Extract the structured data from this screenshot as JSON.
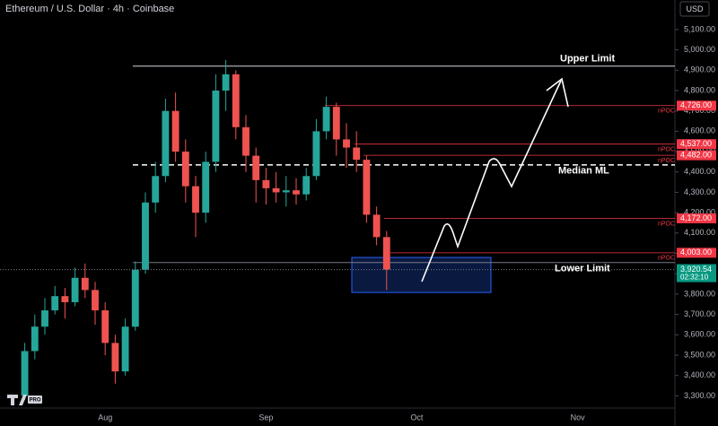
{
  "chart_data": {
    "type": "candlestick",
    "title": "Ethereum / U.S. Dollar · 4h · Coinbase",
    "currency": "USD",
    "categories": [
      null,
      null,
      null,
      null,
      null,
      null,
      null,
      null,
      "Aug",
      null,
      null,
      null,
      null,
      null,
      null,
      null,
      null,
      null,
      null,
      null,
      null,
      null,
      null,
      null,
      "Sep",
      null,
      null,
      null,
      null,
      null,
      null,
      null,
      null,
      null,
      null,
      null,
      null,
      null,
      null,
      "Oct",
      null,
      null,
      null,
      null,
      null,
      null,
      null,
      null,
      null,
      null,
      null,
      null,
      null,
      null,
      null,
      "Nov",
      null,
      null,
      null,
      null,
      null,
      null,
      null,
      null,
      null
    ],
    "open": [
      3300,
      3520,
      3640,
      3720,
      3790,
      3760,
      3880,
      3820,
      3720,
      3560,
      3420,
      3640,
      3920,
      4250,
      4380,
      4700,
      4500,
      4330,
      4200,
      4450,
      4800,
      4880,
      4620,
      4480,
      4360,
      4320,
      4300,
      4310,
      4290,
      4380,
      4600,
      4720,
      4560,
      4520,
      4460,
      4190,
      4080,
      null,
      null,
      null,
      null,
      null,
      null,
      null,
      null,
      null,
      null,
      null,
      null,
      null,
      null,
      null,
      null,
      null,
      null,
      null,
      null,
      null,
      null,
      null,
      null,
      null,
      null,
      null,
      null
    ],
    "high": [
      3560,
      3700,
      3780,
      3840,
      3830,
      3930,
      3950,
      3860,
      3760,
      3600,
      3680,
      3960,
      4300,
      4450,
      4760,
      4790,
      4560,
      4380,
      4500,
      4880,
      4950,
      4900,
      4680,
      4520,
      4420,
      4400,
      4380,
      4370,
      4420,
      4660,
      4770,
      4740,
      4640,
      4600,
      4480,
      4230,
      4110,
      null,
      null,
      null,
      null,
      null,
      null,
      null,
      null,
      null,
      null,
      null,
      null,
      null,
      null,
      null,
      null,
      null,
      null,
      null,
      null,
      null,
      null,
      null,
      null,
      null,
      null,
      null,
      null
    ],
    "low": [
      3280,
      3480,
      3600,
      3700,
      3680,
      3740,
      3780,
      3650,
      3500,
      3360,
      3400,
      3620,
      3900,
      4200,
      4350,
      4450,
      4250,
      4080,
      4150,
      4400,
      4700,
      4560,
      4400,
      4250,
      4240,
      4250,
      4230,
      4240,
      4260,
      4360,
      4560,
      4480,
      4420,
      4400,
      4150,
      4040,
      3820,
      null,
      null,
      null,
      null,
      null,
      null,
      null,
      null,
      null,
      null,
      null,
      null,
      null,
      null,
      null,
      null,
      null,
      null,
      null,
      null,
      null,
      null,
      null,
      null,
      null,
      null,
      null,
      null
    ],
    "close": [
      3520,
      3640,
      3720,
      3790,
      3760,
      3880,
      3820,
      3720,
      3560,
      3420,
      3640,
      3920,
      4250,
      4380,
      4700,
      4500,
      4330,
      4200,
      4450,
      4800,
      4880,
      4620,
      4480,
      4360,
      4320,
      4300,
      4310,
      4290,
      4380,
      4600,
      4720,
      4560,
      4520,
      4460,
      4190,
      4080,
      3920.54,
      null,
      null,
      null,
      null,
      null,
      null,
      null,
      null,
      null,
      null,
      null,
      null,
      null,
      null,
      null,
      null,
      null,
      null,
      null,
      null,
      null,
      null,
      null,
      null,
      null,
      null,
      null,
      null
    ],
    "up_color": "#26a69a",
    "down_color": "#ef5350",
    "ylim": [
      3240,
      5245
    ],
    "yticks": [
      {
        "value": 3300,
        "label": "3,300.00"
      },
      {
        "value": 3400,
        "label": "3,400.00"
      },
      {
        "value": 3500,
        "label": "3,500.00"
      },
      {
        "value": 3600,
        "label": "3,600.00"
      },
      {
        "value": 3700,
        "label": "3,700.00"
      },
      {
        "value": 3800,
        "label": "3,800.00"
      },
      {
        "value": 3900,
        "label": "3,900.00"
      },
      {
        "value": 4000,
        "label": "4,000.00"
      },
      {
        "value": 4100,
        "label": "4,100.00"
      },
      {
        "value": 4200,
        "label": "4,200.00"
      },
      {
        "value": 4300,
        "label": "4,300.00"
      },
      {
        "value": 4400,
        "label": "4,400.00"
      },
      {
        "value": 4500,
        "label": "4,500.00"
      },
      {
        "value": 4600,
        "label": "4,600.00"
      },
      {
        "value": 4700,
        "label": "4,700.00"
      },
      {
        "value": 4800,
        "label": "4,800.00"
      },
      {
        "value": 4900,
        "label": "4,900.00"
      },
      {
        "value": 5000,
        "label": "5,000.00"
      },
      {
        "value": 5100,
        "label": "5,100.00"
      }
    ],
    "grid": false,
    "levels": [
      {
        "label": "nPOC",
        "value": 4726,
        "price_label": "4,726.00"
      },
      {
        "label": "nPOC",
        "value": 4537,
        "price_label": "4,537.00"
      },
      {
        "label": "nPOC",
        "value": 4482,
        "price_label": "4,482.00"
      },
      {
        "label": "nPOC",
        "value": 4172,
        "price_label": "4,172.00"
      },
      {
        "label": "nPOC",
        "value": 4003,
        "price_label": "4,003.00"
      }
    ],
    "level_color": "#f23645",
    "guides": [
      {
        "label": "Upper Limit",
        "value": 4920,
        "dashed": false
      },
      {
        "label": "Median ML",
        "value": 4435,
        "dashed": true
      },
      {
        "label": "Lower Limit",
        "value": 3955,
        "dashed": false
      }
    ],
    "zone": [
      3808,
      3980
    ],
    "last_price": {
      "value": 3920.54,
      "label": "3,920.54",
      "countdown": "02:32:10",
      "color": "#089981"
    },
    "logo": "PRO"
  }
}
